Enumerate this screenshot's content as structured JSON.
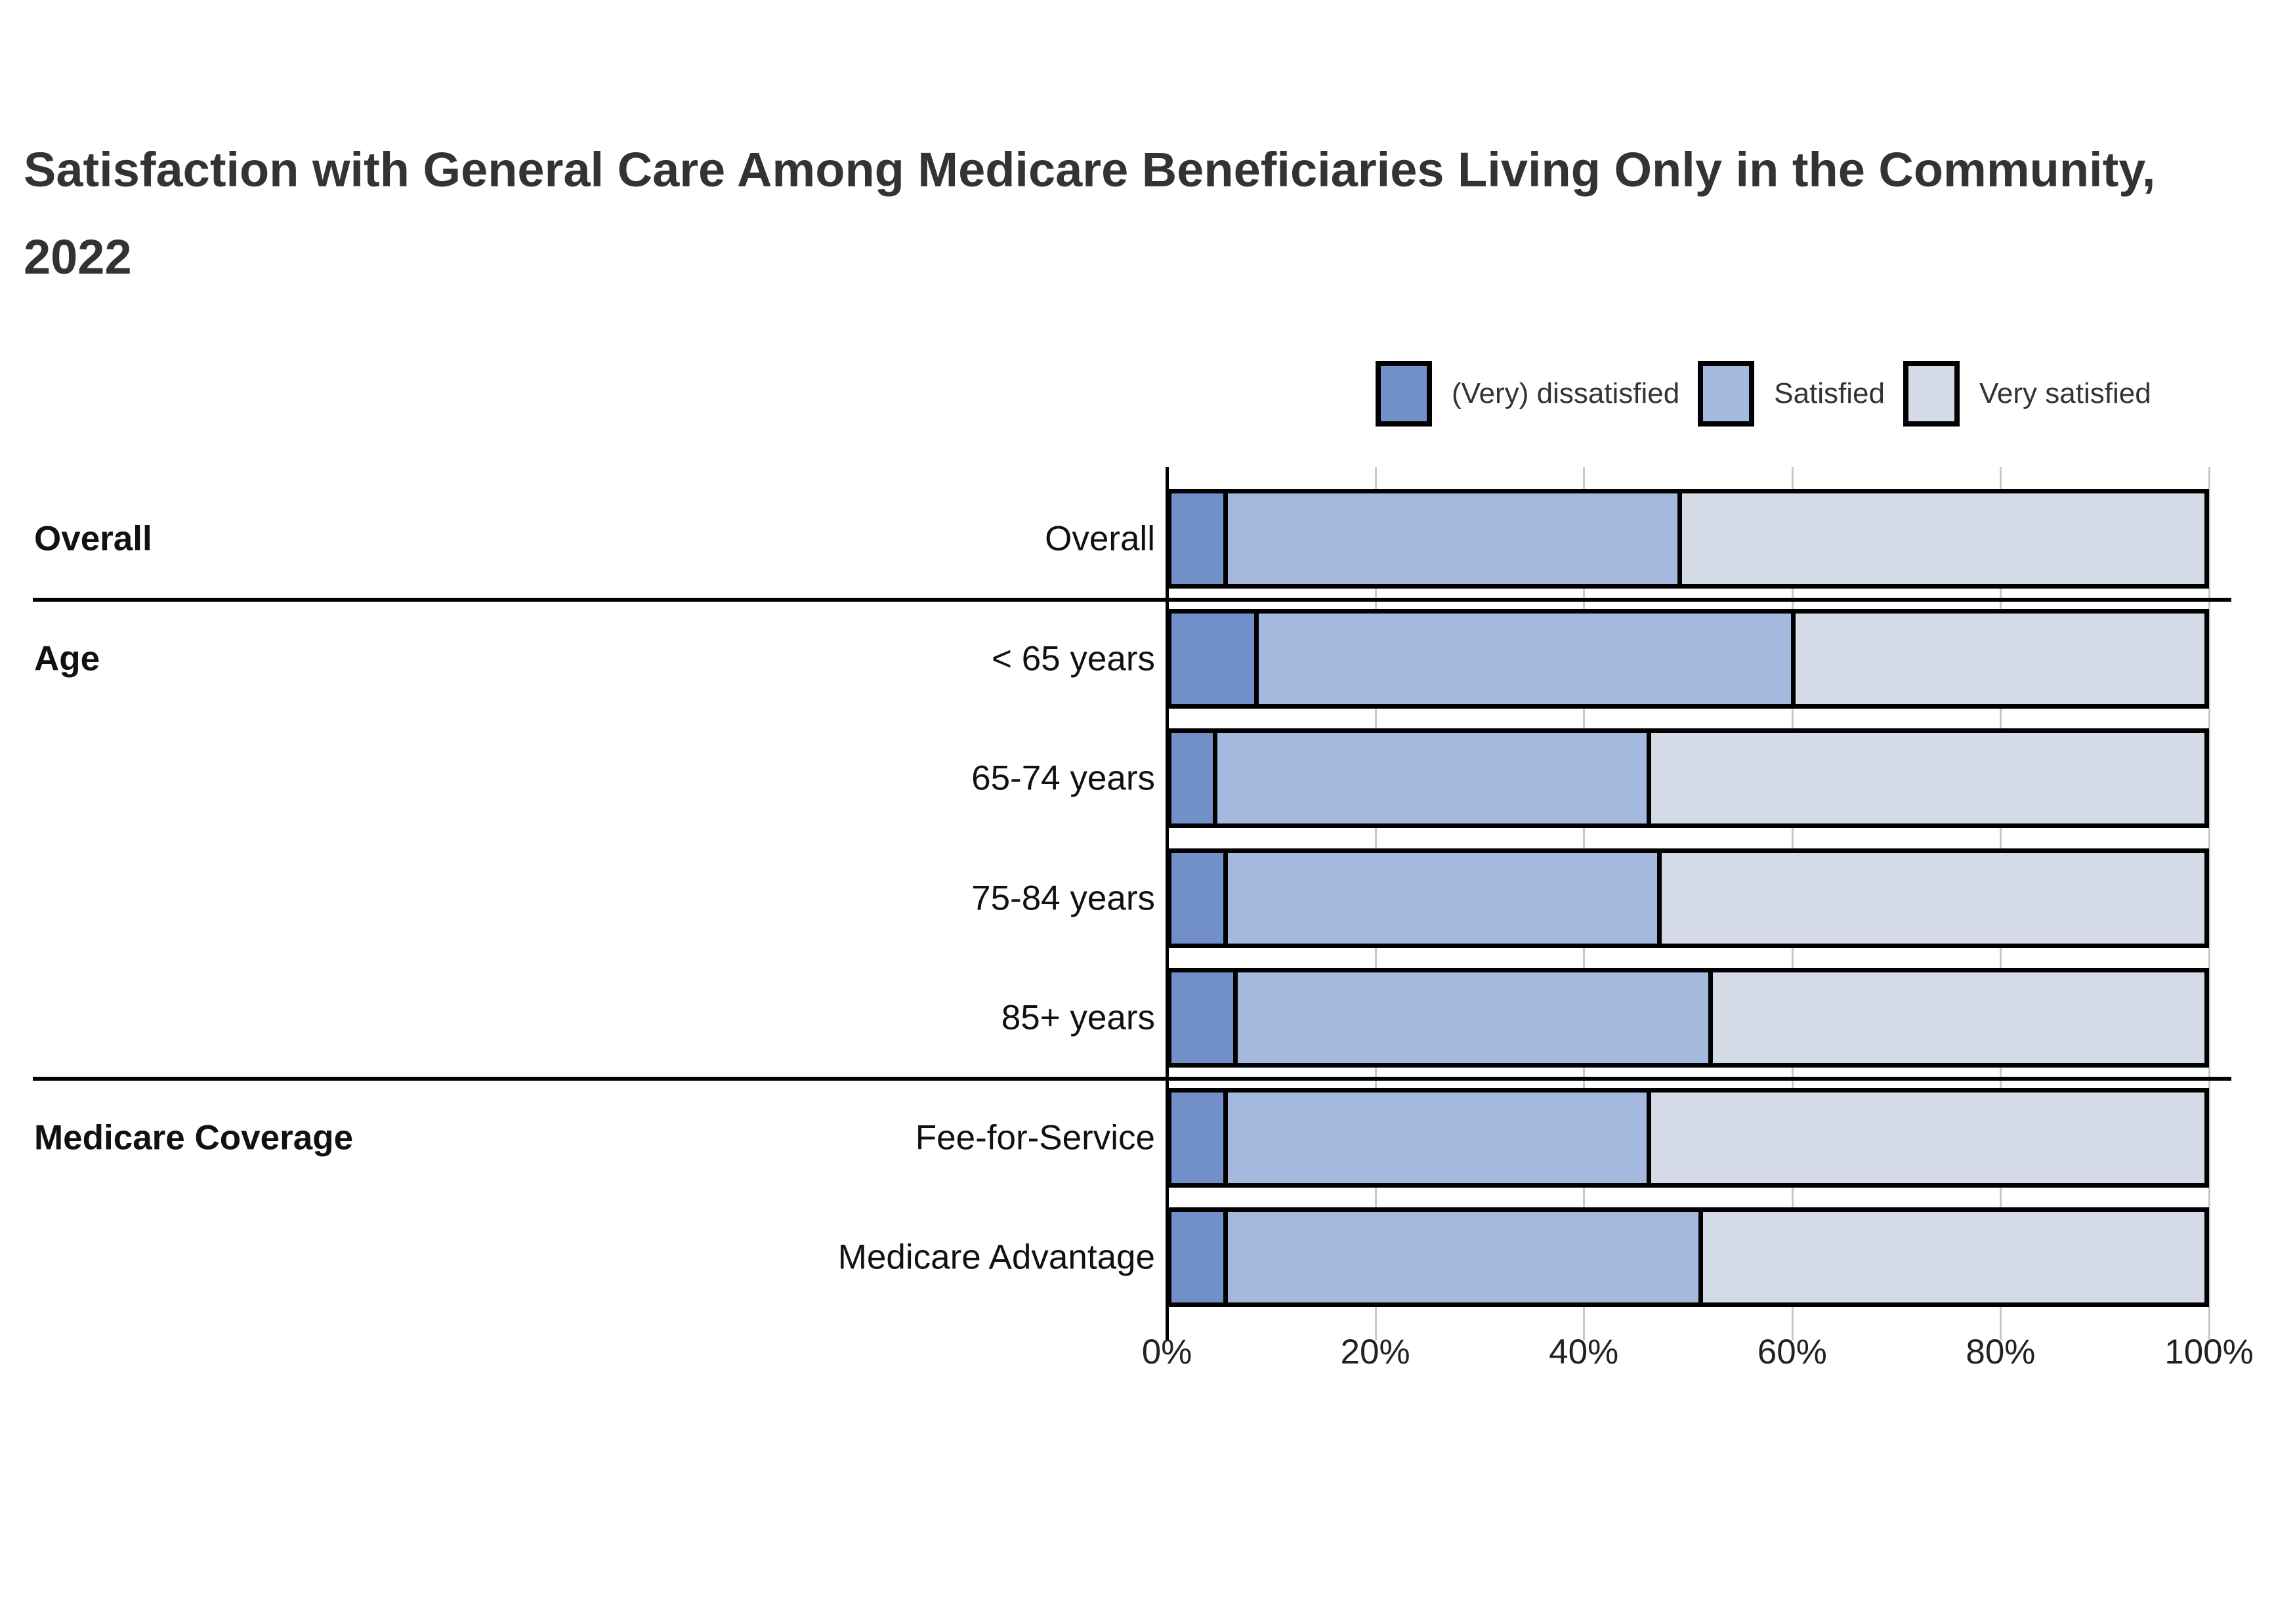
{
  "title": "Satisfaction with General Care Among Medicare Beneficiaries Living Only in the Community, 2022",
  "legend": {
    "items": [
      {
        "label": "(Very) dissatisfied",
        "color": "#7190ca"
      },
      {
        "label": "Satisfied",
        "color": "#a5b9de"
      },
      {
        "label": "Very satisfied",
        "color": "#d4dbe6"
      }
    ]
  },
  "colors": {
    "bar_border": "#000000",
    "gridline": "#c8c8c8",
    "axis_line": "#000000",
    "title_text": "#333333",
    "label_text": "#111111"
  },
  "chart_data": {
    "type": "bar",
    "orientation": "horizontal",
    "stacked": true,
    "unit": "percent",
    "title": "Satisfaction with General Care Among Medicare Beneficiaries Living Only in the Community, 2022",
    "categories": [
      "Overall",
      "< 65 years",
      "65-74 years",
      "75-84 years",
      "85+ years",
      "Fee-for-Service",
      "Medicare Advantage"
    ],
    "row_groups": [
      {
        "name": "Overall",
        "start_row": 0,
        "end_row": 0
      },
      {
        "name": "Age",
        "start_row": 1,
        "end_row": 4
      },
      {
        "name": "Medicare Coverage",
        "start_row": 5,
        "end_row": 6
      }
    ],
    "series": [
      {
        "name": "(Very) dissatisfied",
        "color": "#7190ca",
        "values": [
          5,
          8,
          4,
          5,
          6,
          5,
          5
        ]
      },
      {
        "name": "Satisfied",
        "color": "#a5b9de",
        "values": [
          44,
          52,
          42,
          42,
          46,
          41,
          46
        ]
      },
      {
        "name": "Very satisfied",
        "color": "#d4dbe6",
        "values": [
          51,
          40,
          54,
          53,
          48,
          54,
          49
        ]
      }
    ],
    "xlim": [
      0,
      100
    ],
    "x_tick_labels": [
      "0%",
      "20%",
      "40%",
      "60%",
      "80%",
      "100%"
    ],
    "grid": "vertical",
    "legend_position": "top-right"
  }
}
